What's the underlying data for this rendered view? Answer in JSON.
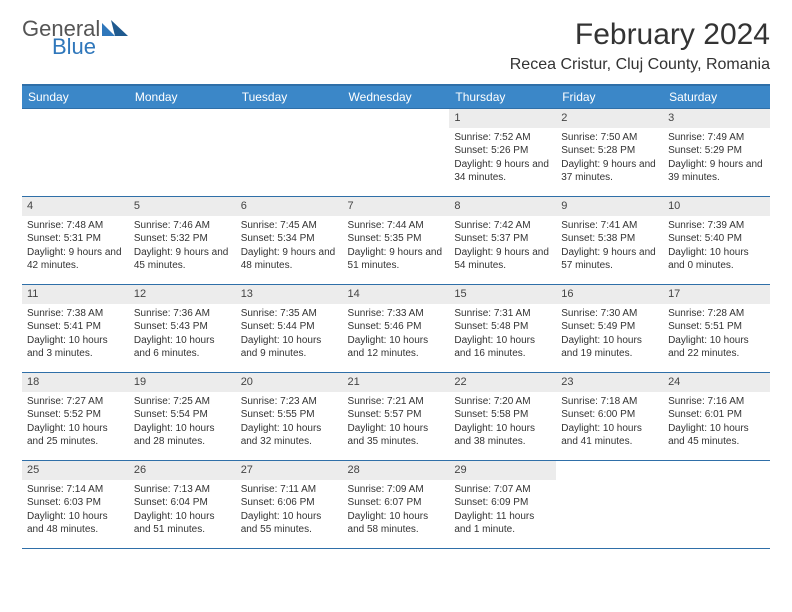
{
  "brand": {
    "general": "General",
    "blue": "Blue"
  },
  "title": "February 2024",
  "location": "Recea Cristur, Cluj County, Romania",
  "colors": {
    "header_bg": "#3b87c8",
    "header_border": "#2f6fa8",
    "daynum_bg": "#ececec",
    "brand_blue": "#2f77bb",
    "text": "#333333",
    "background": "#ffffff"
  },
  "weekdays": [
    "Sunday",
    "Monday",
    "Tuesday",
    "Wednesday",
    "Thursday",
    "Friday",
    "Saturday"
  ],
  "weeks": [
    [
      {
        "empty": true
      },
      {
        "empty": true
      },
      {
        "empty": true
      },
      {
        "empty": true
      },
      {
        "day": "1",
        "sunrise": "Sunrise: 7:52 AM",
        "sunset": "Sunset: 5:26 PM",
        "daylight": "Daylight: 9 hours and 34 minutes."
      },
      {
        "day": "2",
        "sunrise": "Sunrise: 7:50 AM",
        "sunset": "Sunset: 5:28 PM",
        "daylight": "Daylight: 9 hours and 37 minutes."
      },
      {
        "day": "3",
        "sunrise": "Sunrise: 7:49 AM",
        "sunset": "Sunset: 5:29 PM",
        "daylight": "Daylight: 9 hours and 39 minutes."
      }
    ],
    [
      {
        "day": "4",
        "sunrise": "Sunrise: 7:48 AM",
        "sunset": "Sunset: 5:31 PM",
        "daylight": "Daylight: 9 hours and 42 minutes."
      },
      {
        "day": "5",
        "sunrise": "Sunrise: 7:46 AM",
        "sunset": "Sunset: 5:32 PM",
        "daylight": "Daylight: 9 hours and 45 minutes."
      },
      {
        "day": "6",
        "sunrise": "Sunrise: 7:45 AM",
        "sunset": "Sunset: 5:34 PM",
        "daylight": "Daylight: 9 hours and 48 minutes."
      },
      {
        "day": "7",
        "sunrise": "Sunrise: 7:44 AM",
        "sunset": "Sunset: 5:35 PM",
        "daylight": "Daylight: 9 hours and 51 minutes."
      },
      {
        "day": "8",
        "sunrise": "Sunrise: 7:42 AM",
        "sunset": "Sunset: 5:37 PM",
        "daylight": "Daylight: 9 hours and 54 minutes."
      },
      {
        "day": "9",
        "sunrise": "Sunrise: 7:41 AM",
        "sunset": "Sunset: 5:38 PM",
        "daylight": "Daylight: 9 hours and 57 minutes."
      },
      {
        "day": "10",
        "sunrise": "Sunrise: 7:39 AM",
        "sunset": "Sunset: 5:40 PM",
        "daylight": "Daylight: 10 hours and 0 minutes."
      }
    ],
    [
      {
        "day": "11",
        "sunrise": "Sunrise: 7:38 AM",
        "sunset": "Sunset: 5:41 PM",
        "daylight": "Daylight: 10 hours and 3 minutes."
      },
      {
        "day": "12",
        "sunrise": "Sunrise: 7:36 AM",
        "sunset": "Sunset: 5:43 PM",
        "daylight": "Daylight: 10 hours and 6 minutes."
      },
      {
        "day": "13",
        "sunrise": "Sunrise: 7:35 AM",
        "sunset": "Sunset: 5:44 PM",
        "daylight": "Daylight: 10 hours and 9 minutes."
      },
      {
        "day": "14",
        "sunrise": "Sunrise: 7:33 AM",
        "sunset": "Sunset: 5:46 PM",
        "daylight": "Daylight: 10 hours and 12 minutes."
      },
      {
        "day": "15",
        "sunrise": "Sunrise: 7:31 AM",
        "sunset": "Sunset: 5:48 PM",
        "daylight": "Daylight: 10 hours and 16 minutes."
      },
      {
        "day": "16",
        "sunrise": "Sunrise: 7:30 AM",
        "sunset": "Sunset: 5:49 PM",
        "daylight": "Daylight: 10 hours and 19 minutes."
      },
      {
        "day": "17",
        "sunrise": "Sunrise: 7:28 AM",
        "sunset": "Sunset: 5:51 PM",
        "daylight": "Daylight: 10 hours and 22 minutes."
      }
    ],
    [
      {
        "day": "18",
        "sunrise": "Sunrise: 7:27 AM",
        "sunset": "Sunset: 5:52 PM",
        "daylight": "Daylight: 10 hours and 25 minutes."
      },
      {
        "day": "19",
        "sunrise": "Sunrise: 7:25 AM",
        "sunset": "Sunset: 5:54 PM",
        "daylight": "Daylight: 10 hours and 28 minutes."
      },
      {
        "day": "20",
        "sunrise": "Sunrise: 7:23 AM",
        "sunset": "Sunset: 5:55 PM",
        "daylight": "Daylight: 10 hours and 32 minutes."
      },
      {
        "day": "21",
        "sunrise": "Sunrise: 7:21 AM",
        "sunset": "Sunset: 5:57 PM",
        "daylight": "Daylight: 10 hours and 35 minutes."
      },
      {
        "day": "22",
        "sunrise": "Sunrise: 7:20 AM",
        "sunset": "Sunset: 5:58 PM",
        "daylight": "Daylight: 10 hours and 38 minutes."
      },
      {
        "day": "23",
        "sunrise": "Sunrise: 7:18 AM",
        "sunset": "Sunset: 6:00 PM",
        "daylight": "Daylight: 10 hours and 41 minutes."
      },
      {
        "day": "24",
        "sunrise": "Sunrise: 7:16 AM",
        "sunset": "Sunset: 6:01 PM",
        "daylight": "Daylight: 10 hours and 45 minutes."
      }
    ],
    [
      {
        "day": "25",
        "sunrise": "Sunrise: 7:14 AM",
        "sunset": "Sunset: 6:03 PM",
        "daylight": "Daylight: 10 hours and 48 minutes."
      },
      {
        "day": "26",
        "sunrise": "Sunrise: 7:13 AM",
        "sunset": "Sunset: 6:04 PM",
        "daylight": "Daylight: 10 hours and 51 minutes."
      },
      {
        "day": "27",
        "sunrise": "Sunrise: 7:11 AM",
        "sunset": "Sunset: 6:06 PM",
        "daylight": "Daylight: 10 hours and 55 minutes."
      },
      {
        "day": "28",
        "sunrise": "Sunrise: 7:09 AM",
        "sunset": "Sunset: 6:07 PM",
        "daylight": "Daylight: 10 hours and 58 minutes."
      },
      {
        "day": "29",
        "sunrise": "Sunrise: 7:07 AM",
        "sunset": "Sunset: 6:09 PM",
        "daylight": "Daylight: 11 hours and 1 minute."
      },
      {
        "empty": true
      },
      {
        "empty": true
      }
    ]
  ]
}
